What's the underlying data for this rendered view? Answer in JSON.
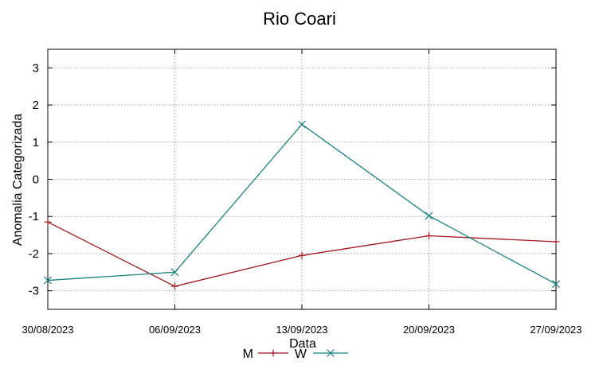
{
  "chart_data": {
    "type": "line",
    "title": "Rio Coari",
    "xlabel": "Data",
    "ylabel": "Anomalia Categorizada",
    "categories": [
      "30/08/2023",
      "06/09/2023",
      "13/09/2023",
      "20/09/2023",
      "27/09/2023"
    ],
    "yticks": [
      "3",
      "2",
      "1",
      "0",
      "-1",
      "-2",
      "-3"
    ],
    "ylim": [
      -3.5,
      3.5
    ],
    "grid": true,
    "legend_position": "bottom",
    "series": [
      {
        "name": "M",
        "color": "#a0141e",
        "marker": "plus",
        "values": [
          -1.15,
          -2.88,
          -2.05,
          -1.52,
          -1.68
        ]
      },
      {
        "name": "W",
        "color": "#1a8080",
        "marker": "cross",
        "values": [
          -2.72,
          -2.5,
          1.48,
          -0.98,
          -2.82
        ]
      }
    ]
  }
}
